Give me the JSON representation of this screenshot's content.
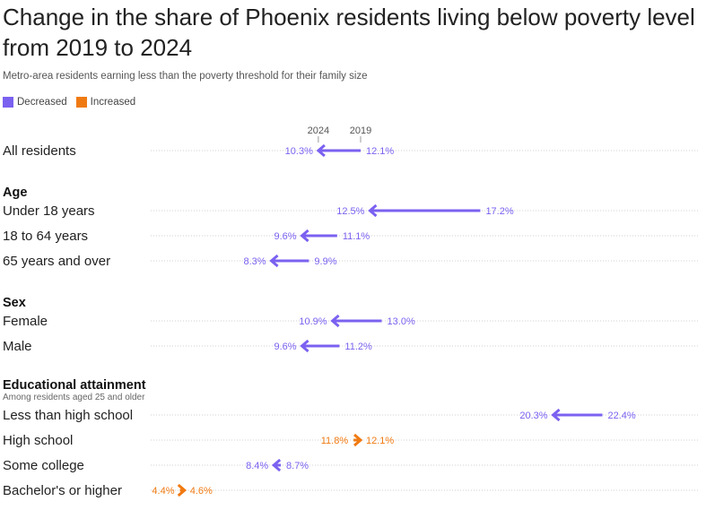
{
  "header": {
    "title": "Change in the share of Phoenix residents living below poverty level from 2019 to 2024",
    "subtitle": "Metro-area residents earning less than the poverty threshold for their family size"
  },
  "legend": [
    {
      "label": "Decreased",
      "color": "#7b61f0"
    },
    {
      "label": "Increased",
      "color": "#f07a12"
    }
  ],
  "chart_data": {
    "type": "arrow",
    "year_labels": {
      "start": "2019",
      "end": "2024"
    },
    "x_domain": [
      4.4,
      22.4
    ],
    "grid": "dotted row lines",
    "groups": [
      {
        "title": "",
        "subtitle": "",
        "rows": [
          {
            "label": "All residents",
            "y2019": 12.1,
            "y2024": 10.3,
            "l2019": "12.1%",
            "l2024": "10.3%"
          }
        ]
      },
      {
        "title": "Age",
        "subtitle": "",
        "rows": [
          {
            "label": "Under 18 years",
            "y2019": 17.2,
            "y2024": 12.5,
            "l2019": "17.2%",
            "l2024": "12.5%"
          },
          {
            "label": "18 to 64 years",
            "y2019": 11.1,
            "y2024": 9.6,
            "l2019": "11.1%",
            "l2024": "9.6%"
          },
          {
            "label": "65 years and over",
            "y2019": 9.9,
            "y2024": 8.3,
            "l2019": "9.9%",
            "l2024": "8.3%"
          }
        ]
      },
      {
        "title": "Sex",
        "subtitle": "",
        "rows": [
          {
            "label": "Female",
            "y2019": 13.0,
            "y2024": 10.9,
            "l2019": "13.0%",
            "l2024": "10.9%"
          },
          {
            "label": "Male",
            "y2019": 11.2,
            "y2024": 9.6,
            "l2019": "11.2%",
            "l2024": "9.6%"
          }
        ]
      },
      {
        "title": "Educational attainment",
        "subtitle": "Among residents aged 25 and older",
        "rows": [
          {
            "label": "Less than high school",
            "y2019": 22.4,
            "y2024": 20.3,
            "l2019": "22.4%",
            "l2024": "20.3%"
          },
          {
            "label": "High school",
            "y2019": 11.8,
            "y2024": 12.1,
            "l2019": "11.8%",
            "l2024": "12.1%"
          },
          {
            "label": "Some college",
            "y2019": 8.7,
            "y2024": 8.4,
            "l2019": "8.7%",
            "l2024": "8.4%"
          },
          {
            "label": "Bachelor's or higher",
            "y2019": 4.4,
            "y2024": 4.6,
            "l2019": "4.4%",
            "l2024": "4.6%"
          }
        ]
      }
    ]
  }
}
